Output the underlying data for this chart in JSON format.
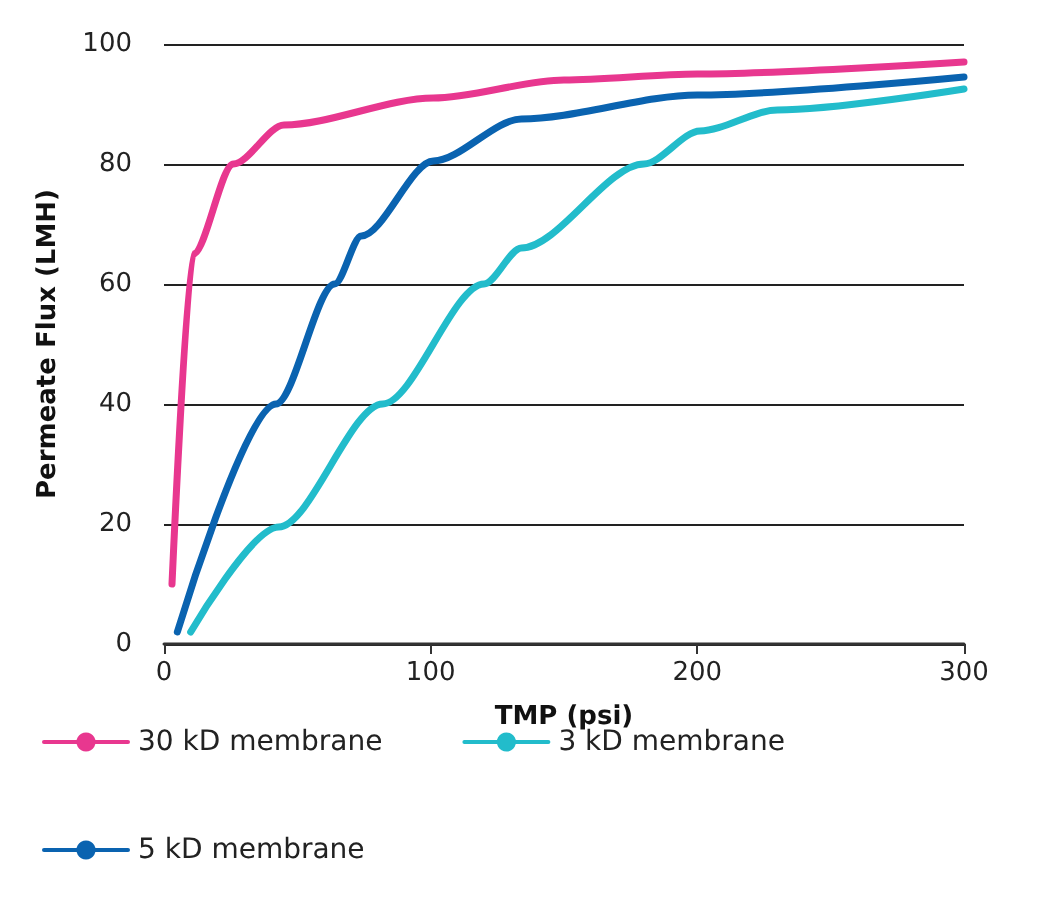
{
  "chart_data": {
    "type": "line",
    "xlabel": "TMP (psi)",
    "ylabel": "Permeate Flux (LMH)",
    "xlim": [
      0,
      300
    ],
    "xticks": [
      0,
      100,
      200,
      300
    ],
    "ylim": [
      0,
      100
    ],
    "yticks": [
      0,
      20,
      40,
      60,
      80,
      100
    ],
    "grid": "y",
    "legend": "bottom",
    "marker": "none",
    "line_style": "solid",
    "series": [
      {
        "name": "30 kD membrane",
        "color": "#e8378f",
        "x": [
          3,
          11,
          26,
          45,
          101,
          150,
          200,
          300
        ],
        "values": [
          10,
          65,
          80,
          86.5,
          91,
          94,
          95,
          97
        ]
      },
      {
        "name": "3 kD membrane",
        "color": "#22bccb",
        "x": [
          10,
          43,
          82,
          120,
          134,
          180,
          201,
          230,
          300
        ],
        "values": [
          2,
          19.5,
          40,
          60,
          66,
          80,
          85.5,
          89,
          92.5
        ]
      },
      {
        "name": "5 kD membrane",
        "color": "#0a63b0",
        "x": [
          5,
          42,
          64,
          74,
          101,
          134,
          200,
          300
        ],
        "values": [
          2,
          40,
          60,
          68,
          80.5,
          87.5,
          91.5,
          94.5
        ]
      }
    ]
  }
}
